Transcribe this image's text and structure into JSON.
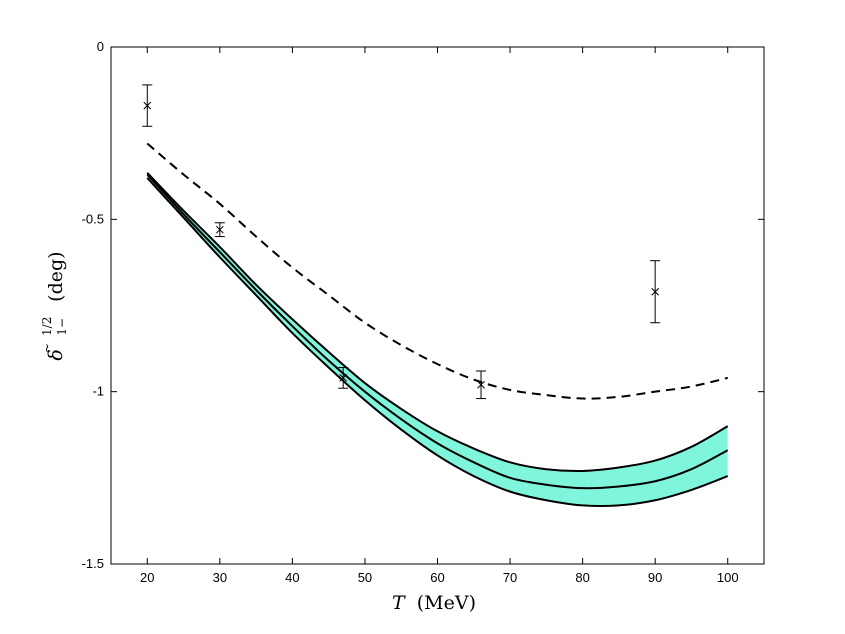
{
  "chart_data": {
    "type": "line",
    "title": "",
    "xlabel": {
      "variable": "T",
      "unit": "(MeV)"
    },
    "ylabel": {
      "base": "δ",
      "mark": "~",
      "superscript": "1/2",
      "subscript": "1−",
      "unit": "(deg)"
    },
    "xlim": [
      15,
      105
    ],
    "ylim": [
      -1.5,
      0
    ],
    "x_ticks": [
      20,
      30,
      40,
      50,
      60,
      70,
      80,
      90,
      100
    ],
    "x_tick_labels": [
      "20",
      "30",
      "40",
      "50",
      "60",
      "70",
      "80",
      "90",
      "100"
    ],
    "y_ticks": [
      0,
      -0.5,
      -1,
      -1.5
    ],
    "y_tick_labels": [
      "0",
      "-0.5",
      "-1",
      "-1.5"
    ],
    "grid": false,
    "legend": "none",
    "colors": {
      "band": "#7ff5dc",
      "line": "#000000"
    },
    "series": [
      {
        "style": "dashed",
        "x": [
          20,
          25,
          30,
          35,
          40,
          45,
          50,
          55,
          60,
          65,
          70,
          75,
          80,
          85,
          90,
          95,
          100
        ],
        "y": [
          -0.28,
          -0.37,
          -0.455,
          -0.55,
          -0.64,
          -0.72,
          -0.8,
          -0.865,
          -0.92,
          -0.965,
          -0.995,
          -1.01,
          -1.02,
          -1.015,
          -1.0,
          -0.985,
          -0.96
        ]
      },
      {
        "style": "band",
        "x": [
          20,
          25,
          30,
          35,
          40,
          45,
          50,
          55,
          60,
          65,
          70,
          75,
          80,
          85,
          90,
          95,
          100
        ],
        "y_upper": [
          -0.365,
          -0.475,
          -0.58,
          -0.69,
          -0.79,
          -0.885,
          -0.975,
          -1.05,
          -1.115,
          -1.165,
          -1.205,
          -1.225,
          -1.23,
          -1.22,
          -1.2,
          -1.16,
          -1.1
        ],
        "y_center": [
          -0.37,
          -0.485,
          -0.595,
          -0.705,
          -0.81,
          -0.91,
          -1.0,
          -1.08,
          -1.15,
          -1.205,
          -1.25,
          -1.27,
          -1.28,
          -1.275,
          -1.26,
          -1.225,
          -1.17
        ],
        "y_lower": [
          -0.38,
          -0.495,
          -0.61,
          -0.72,
          -0.83,
          -0.93,
          -1.025,
          -1.11,
          -1.185,
          -1.245,
          -1.29,
          -1.315,
          -1.33,
          -1.33,
          -1.315,
          -1.285,
          -1.245
        ]
      }
    ],
    "data_points": [
      {
        "x": 20,
        "y": -0.17,
        "err": 0.06
      },
      {
        "x": 30,
        "y": -0.53,
        "err": 0.02
      },
      {
        "x": 47,
        "y": -0.96,
        "err": 0.03
      },
      {
        "x": 66,
        "y": -0.98,
        "err": 0.04
      },
      {
        "x": 90,
        "y": -0.71,
        "err": 0.09
      }
    ]
  }
}
